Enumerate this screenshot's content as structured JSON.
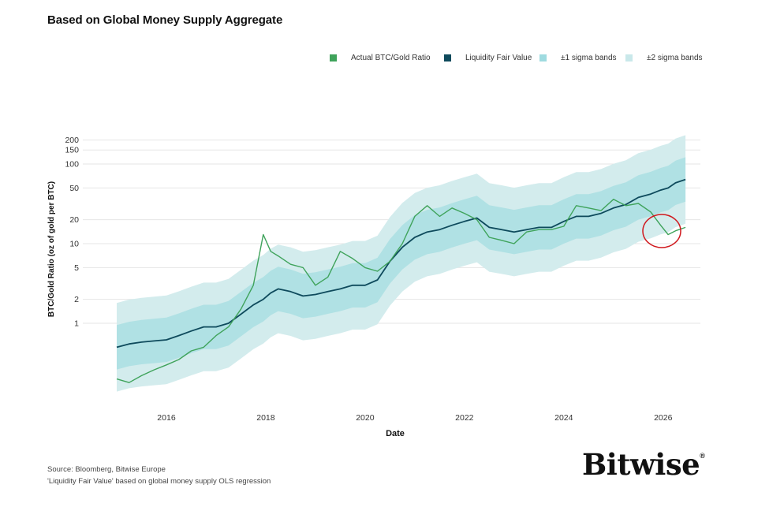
{
  "title": "Based on Global Money Supply Aggregate",
  "legend": [
    {
      "label": "Actual BTC/Gold Ratio",
      "color": "#3fa35b"
    },
    {
      "label": "Liquidity Fair Value",
      "color": "#0e4a5c"
    },
    {
      "label": "±1 sigma bands",
      "color": "#9fdbe0"
    },
    {
      "label": "±2 sigma bands",
      "color": "#c9e8ea"
    }
  ],
  "footer": {
    "source": "Source: Bloomberg, Bitwise Europe",
    "note": "'Liquidity Fair Value' based on global money supply OLS regression"
  },
  "brand": {
    "name": "Bitwise",
    "mark": "®"
  },
  "chart_data": {
    "type": "line",
    "title": "Based on Global Money Supply Aggregate",
    "xlabel": "Date",
    "ylabel": "BTC/Gold Ratio (oz of gold per BTC)",
    "y_scale": "log",
    "xlim": [
      2015.0,
      2026.75
    ],
    "ylim": [
      0.12,
      220
    ],
    "x_ticks": [
      "2016",
      "2018",
      "2020",
      "2022",
      "2024",
      "2026"
    ],
    "y_ticks": [
      "1",
      "2",
      "5",
      "10",
      "20",
      "50",
      "100",
      "150",
      "200"
    ],
    "grid": "horizontal",
    "legend_position": "top-right",
    "x": [
      2015.0,
      2015.25,
      2015.5,
      2015.75,
      2016.0,
      2016.25,
      2016.5,
      2016.75,
      2017.0,
      2017.25,
      2017.5,
      2017.75,
      2017.95,
      2018.1,
      2018.25,
      2018.5,
      2018.75,
      2019.0,
      2019.25,
      2019.5,
      2019.75,
      2020.0,
      2020.25,
      2020.5,
      2020.75,
      2021.0,
      2021.25,
      2021.5,
      2021.75,
      2022.0,
      2022.25,
      2022.5,
      2022.75,
      2023.0,
      2023.25,
      2023.5,
      2023.75,
      2024.0,
      2024.25,
      2024.5,
      2024.75,
      2025.0,
      2025.25,
      2025.5,
      2025.75,
      2025.95,
      2026.1,
      2026.25,
      2026.45
    ],
    "series": [
      {
        "name": "Actual BTC/Gold Ratio",
        "values": [
          0.2,
          0.18,
          0.22,
          0.26,
          0.3,
          0.35,
          0.45,
          0.5,
          0.7,
          0.9,
          1.5,
          3.0,
          13.0,
          8.0,
          7.0,
          5.5,
          5.0,
          3.0,
          3.8,
          8.0,
          6.5,
          5.0,
          4.5,
          6.0,
          10.0,
          22.0,
          30.0,
          22.0,
          28.0,
          24.0,
          20.0,
          12.0,
          11.0,
          10.0,
          14.0,
          15.0,
          15.0,
          16.5,
          30.0,
          28.0,
          26.0,
          36.0,
          30.0,
          32.0,
          25.0,
          17.0,
          13.0,
          14.5,
          16.0
        ]
      },
      {
        "name": "Liquidity Fair Value",
        "values": [
          0.5,
          0.55,
          0.58,
          0.6,
          0.62,
          0.7,
          0.8,
          0.9,
          0.9,
          1.0,
          1.3,
          1.7,
          2.0,
          2.4,
          2.7,
          2.5,
          2.2,
          2.3,
          2.5,
          2.7,
          3.0,
          3.0,
          3.5,
          6.0,
          9.0,
          12.0,
          14.0,
          15.0,
          17.0,
          19.0,
          21.0,
          16.0,
          15.0,
          14.0,
          15.0,
          16.0,
          16.0,
          19.0,
          22.0,
          22.0,
          24.0,
          28.0,
          31.0,
          38.0,
          42.0,
          47.0,
          50.0,
          58.0,
          64.0
        ]
      }
    ]
  }
}
